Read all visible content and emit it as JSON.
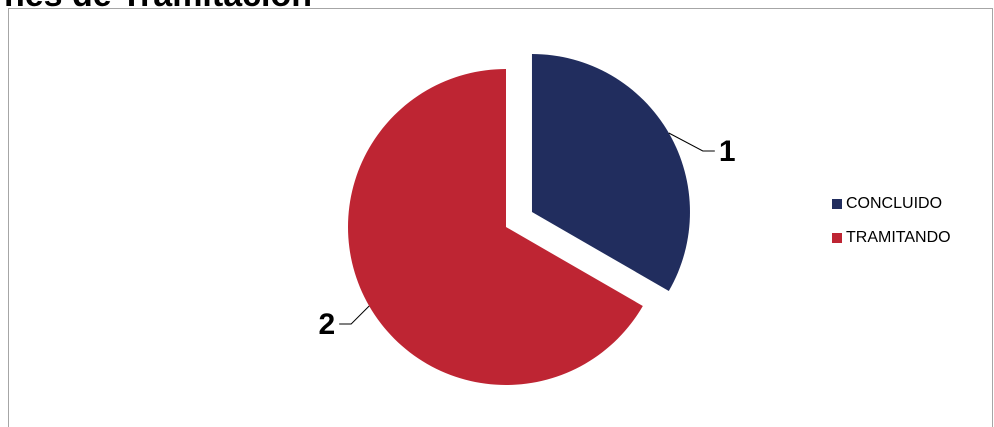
{
  "header": {
    "title": "nes de Tramitación"
  },
  "chart_data": {
    "type": "pie",
    "title": "nes de Tramitación",
    "labels": [
      "CONCLUIDO",
      "TRAMITANDO"
    ],
    "values": [
      1,
      2
    ],
    "data_labels": [
      "1",
      "2"
    ],
    "colors": [
      "#212d5e",
      "#be2533"
    ],
    "exploded": [
      true,
      false
    ],
    "legend": "right"
  }
}
